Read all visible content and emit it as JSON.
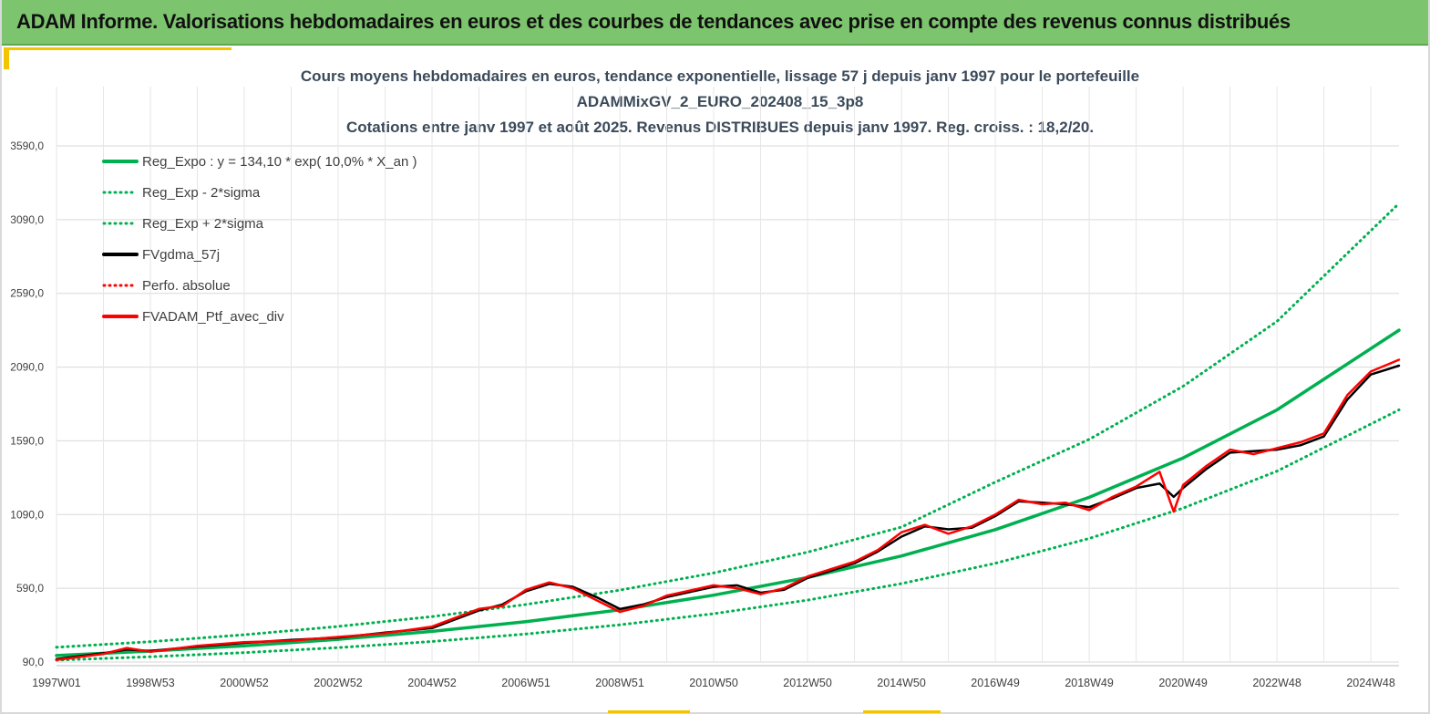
{
  "header": {
    "title": "ADAM Informe. Valorisations hebdomadaires en euros et des courbes de tendances avec prise en compte des revenus connus distribués"
  },
  "chart_data": {
    "type": "line",
    "title_lines": [
      "Cours moyens hebdomadaires  en euros, tendance exponentielle, lissage 57 j depuis janv 1997 pour le portefeuille",
      "ADAMMixGV_2_EURO_202408_15_3p8",
      "Cotations  entre janv 1997 et août 2025. Revenus DISTRIBUES depuis janv 1997. Reg. croiss. : 18,2/20."
    ],
    "xlabel": "",
    "ylabel": "",
    "ylim": [
      90,
      3590
    ],
    "xlim": [
      1997.0,
      2025.6
    ],
    "y_ticks": [
      "90,0",
      "590,0",
      "1090,0",
      "1590,0",
      "2090,0",
      "2590,0",
      "3090,0",
      "3590,0"
    ],
    "x_ticks": [
      {
        "label": "1997W01",
        "x": 1997.0
      },
      {
        "label": "1998W53",
        "x": 1999.0
      },
      {
        "label": "2000W52",
        "x": 2001.0
      },
      {
        "label": "2002W52",
        "x": 2003.0
      },
      {
        "label": "2004W52",
        "x": 2005.0
      },
      {
        "label": "2006W51",
        "x": 2007.0
      },
      {
        "label": "2008W51",
        "x": 2009.0
      },
      {
        "label": "2010W50",
        "x": 2011.0
      },
      {
        "label": "2012W50",
        "x": 2013.0
      },
      {
        "label": "2014W50",
        "x": 2015.0
      },
      {
        "label": "2016W49",
        "x": 2017.0
      },
      {
        "label": "2018W49",
        "x": 2019.0
      },
      {
        "label": "2020W49",
        "x": 2021.0
      },
      {
        "label": "2022W48",
        "x": 2023.0
      },
      {
        "label": "2024W48",
        "x": 2025.0
      }
    ],
    "legend": {
      "position": "top-left",
      "entries": [
        {
          "name": "Reg_Expo : y = 134,10 * exp( 10,0% *  X_an )",
          "color": "#00b050",
          "style": "solid"
        },
        {
          "name": "Reg_Exp - 2*sigma",
          "color": "#00b050",
          "style": "dotted"
        },
        {
          "name": "Reg_Exp + 2*sigma",
          "color": "#00b050",
          "style": "dotted"
        },
        {
          "name": "FVgdma_57j",
          "color": "#000000",
          "style": "solid"
        },
        {
          "name": "Perfo. absolue",
          "color": "#ff0000",
          "style": "dotted"
        },
        {
          "name": "FVADAM_Ptf_avec_div",
          "color": "#ff0000",
          "style": "solid"
        }
      ]
    },
    "series": [
      {
        "name": "Reg_Expo : y = 134,10 * exp( 10,0% *  X_an )",
        "color": "#00b050",
        "x": [
          1997.0,
          1999.0,
          2001.0,
          2003.0,
          2005.0,
          2007.0,
          2009.0,
          2011.0,
          2013.0,
          2015.0,
          2017.0,
          2019.0,
          2021.0,
          2023.0,
          2025.6
        ],
        "y": [
          134,
          164,
          200,
          244,
          298,
          364,
          444,
          543,
          663,
          809,
          988,
          1207,
          1474,
          1800,
          2340
        ]
      },
      {
        "name": "Reg_Exp - 2*sigma",
        "color": "#00b050",
        "x": [
          1997.0,
          1999.0,
          2001.0,
          2003.0,
          2005.0,
          2007.0,
          2009.0,
          2011.0,
          2013.0,
          2015.0,
          2017.0,
          2019.0,
          2021.0,
          2023.0,
          2025.6
        ],
        "y": [
          103,
          126,
          154,
          188,
          229,
          280,
          342,
          418,
          510,
          622,
          760,
          928,
          1134,
          1384,
          1800
        ]
      },
      {
        "name": "Reg_Exp + 2*sigma",
        "color": "#00b050",
        "x": [
          1997.0,
          1999.0,
          2001.0,
          2003.0,
          2005.0,
          2007.0,
          2009.0,
          2011.0,
          2013.0,
          2015.0,
          2017.0,
          2019.0,
          2021.0,
          2023.0,
          2025.6
        ],
        "y": [
          190,
          228,
          275,
          331,
          398,
          480,
          577,
          694,
          835,
          1005,
          1310,
          1600,
          1960,
          2400,
          3200
        ]
      },
      {
        "name": "FVgdma_57j",
        "color": "#000000",
        "x": [
          1997.0,
          1998.0,
          1998.5,
          1999.0,
          2000.0,
          2001.0,
          2002.0,
          2003.0,
          2004.0,
          2005.0,
          2006.0,
          2006.5,
          2007.0,
          2007.5,
          2008.0,
          2008.5,
          2009.0,
          2009.5,
          2010.0,
          2011.0,
          2011.5,
          2012.0,
          2012.5,
          2013.0,
          2014.0,
          2014.5,
          2015.0,
          2015.5,
          2016.0,
          2016.5,
          2017.0,
          2017.5,
          2018.0,
          2018.5,
          2019.0,
          2019.5,
          2020.0,
          2020.5,
          2020.8,
          2021.0,
          2021.5,
          2022.0,
          2022.5,
          2023.0,
          2023.5,
          2024.0,
          2024.5,
          2025.0,
          2025.6
        ],
        "y": [
          110,
          150,
          175,
          165,
          195,
          220,
          240,
          255,
          290,
          320,
          440,
          480,
          570,
          620,
          600,
          530,
          450,
          480,
          530,
          600,
          610,
          560,
          580,
          660,
          760,
          840,
          940,
          1010,
          990,
          1000,
          1080,
          1180,
          1170,
          1160,
          1140,
          1200,
          1270,
          1300,
          1210,
          1270,
          1400,
          1510,
          1520,
          1530,
          1560,
          1620,
          1870,
          2040,
          2100
        ]
      },
      {
        "name": "FVADAM_Ptf_avec_div",
        "color": "#ff0000",
        "x": [
          1997.0,
          1998.0,
          1998.5,
          1999.0,
          2000.0,
          2001.0,
          2002.0,
          2003.0,
          2004.0,
          2005.0,
          2006.0,
          2006.5,
          2007.0,
          2007.5,
          2008.0,
          2008.5,
          2009.0,
          2009.5,
          2010.0,
          2011.0,
          2011.5,
          2012.0,
          2012.5,
          2013.0,
          2014.0,
          2014.5,
          2015.0,
          2015.5,
          2016.0,
          2016.5,
          2017.0,
          2017.5,
          2018.0,
          2018.5,
          2019.0,
          2019.5,
          2020.0,
          2020.5,
          2020.8,
          2021.0,
          2021.5,
          2022.0,
          2022.5,
          2023.0,
          2023.5,
          2024.0,
          2024.5,
          2025.0,
          2025.6
        ],
        "y": [
          105,
          145,
          185,
          160,
          200,
          225,
          235,
          260,
          285,
          330,
          450,
          470,
          580,
          630,
          590,
          510,
          430,
          470,
          540,
          610,
          590,
          550,
          590,
          670,
          770,
          850,
          970,
          1020,
          960,
          1010,
          1090,
          1190,
          1160,
          1170,
          1120,
          1210,
          1280,
          1380,
          1110,
          1290,
          1420,
          1530,
          1500,
          1540,
          1580,
          1640,
          1900,
          2060,
          2140
        ]
      }
    ],
    "grid": true
  }
}
